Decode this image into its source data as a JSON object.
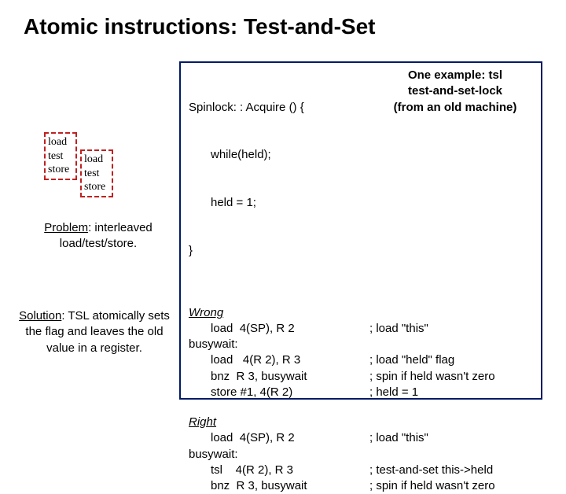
{
  "title": "Atomic instructions: Test-and-Set",
  "spinlock": {
    "l1": "Spinlock: : Acquire () {",
    "l2": "while(held);",
    "l3": "held = 1;",
    "l4": "}"
  },
  "example_note": {
    "l1": "One example: tsl",
    "l2": "test-and-set-lock",
    "l3": "(from an old machine)"
  },
  "wrong": {
    "heading": "Wrong",
    "l1": "load  4(SP), R 2",
    "l2": "busywait:",
    "l3": "load   4(R 2), R 3",
    "l4": "bnz  R 3, busywait",
    "l5": "store #1, 4(R 2)",
    "c1": "; load \"this\"",
    "c3": "; load \"held\" flag",
    "c4": "; spin if held wasn't zero",
    "c5": "; held = 1"
  },
  "right": {
    "heading": "Right",
    "l1": "load  4(SP), R 2",
    "l2": "busywait:",
    "l3": "tsl    4(R 2), R 3",
    "l4": "bnz  R 3, busywait",
    "c1": "; load \"this\"",
    "c3": "; test-and-set this->held",
    "c4": "; spin if held wasn't zero"
  },
  "lts": {
    "l1": "load",
    "l2": "test",
    "l3": "store"
  },
  "problem": {
    "label": "Problem",
    "rest": ": interleaved load/test/store."
  },
  "solution": {
    "label": "Solution",
    "rest": ": TSL atomically sets the flag and leaves the old value in a register."
  },
  "colors": {
    "border": "#001a66",
    "dash": "#c02020",
    "bg": "#ffffff",
    "text": "#000000"
  }
}
